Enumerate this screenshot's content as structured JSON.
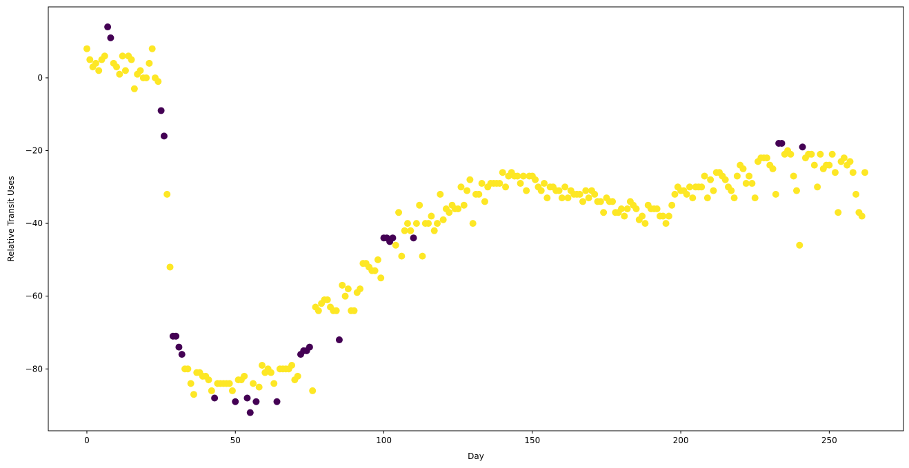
{
  "chart_data": {
    "type": "scatter",
    "title": "",
    "xlabel": "Day",
    "ylabel": "Relative Transit Uses",
    "xlim": [
      -13,
      275
    ],
    "ylim": [
      -97,
      19.5
    ],
    "xticks": [
      0,
      50,
      100,
      150,
      200,
      250
    ],
    "yticks": [
      0,
      -20,
      -40,
      -60,
      -80
    ],
    "grid": false,
    "legend": "none",
    "colors": {
      "yellow": "#fde725",
      "purple": "#440154"
    },
    "points": [
      [
        0,
        8,
        "yellow"
      ],
      [
        1,
        5,
        "yellow"
      ],
      [
        2,
        3,
        "yellow"
      ],
      [
        3,
        4,
        "yellow"
      ],
      [
        4,
        2,
        "yellow"
      ],
      [
        5,
        5,
        "yellow"
      ],
      [
        6,
        6,
        "yellow"
      ],
      [
        7,
        14,
        "purple"
      ],
      [
        8,
        11,
        "purple"
      ],
      [
        9,
        4,
        "yellow"
      ],
      [
        10,
        3,
        "yellow"
      ],
      [
        11,
        1,
        "yellow"
      ],
      [
        12,
        6,
        "yellow"
      ],
      [
        13,
        2,
        "yellow"
      ],
      [
        14,
        6,
        "yellow"
      ],
      [
        15,
        5,
        "yellow"
      ],
      [
        16,
        -3,
        "yellow"
      ],
      [
        17,
        1,
        "yellow"
      ],
      [
        18,
        2,
        "yellow"
      ],
      [
        19,
        0,
        "yellow"
      ],
      [
        20,
        0,
        "yellow"
      ],
      [
        21,
        4,
        "yellow"
      ],
      [
        22,
        8,
        "yellow"
      ],
      [
        23,
        0,
        "yellow"
      ],
      [
        24,
        -1,
        "yellow"
      ],
      [
        25,
        -9,
        "purple"
      ],
      [
        26,
        -16,
        "purple"
      ],
      [
        27,
        -32,
        "yellow"
      ],
      [
        28,
        -52,
        "yellow"
      ],
      [
        29,
        -71,
        "purple"
      ],
      [
        30,
        -71,
        "purple"
      ],
      [
        31,
        -74,
        "purple"
      ],
      [
        32,
        -76,
        "purple"
      ],
      [
        33,
        -80,
        "yellow"
      ],
      [
        34,
        -80,
        "yellow"
      ],
      [
        35,
        -84,
        "yellow"
      ],
      [
        36,
        -87,
        "yellow"
      ],
      [
        37,
        -81,
        "yellow"
      ],
      [
        38,
        -81,
        "yellow"
      ],
      [
        39,
        -82,
        "yellow"
      ],
      [
        40,
        -82,
        "yellow"
      ],
      [
        41,
        -83,
        "yellow"
      ],
      [
        42,
        -86,
        "yellow"
      ],
      [
        43,
        -88,
        "purple"
      ],
      [
        44,
        -84,
        "yellow"
      ],
      [
        45,
        -84,
        "yellow"
      ],
      [
        46,
        -84,
        "yellow"
      ],
      [
        47,
        -84,
        "yellow"
      ],
      [
        48,
        -84,
        "yellow"
      ],
      [
        49,
        -86,
        "yellow"
      ],
      [
        50,
        -89,
        "purple"
      ],
      [
        51,
        -83,
        "yellow"
      ],
      [
        52,
        -83,
        "yellow"
      ],
      [
        53,
        -82,
        "yellow"
      ],
      [
        54,
        -88,
        "purple"
      ],
      [
        55,
        -92,
        "purple"
      ],
      [
        56,
        -84,
        "yellow"
      ],
      [
        57,
        -89,
        "purple"
      ],
      [
        58,
        -85,
        "yellow"
      ],
      [
        59,
        -79,
        "yellow"
      ],
      [
        60,
        -81,
        "yellow"
      ],
      [
        61,
        -80,
        "yellow"
      ],
      [
        62,
        -81,
        "yellow"
      ],
      [
        63,
        -84,
        "yellow"
      ],
      [
        64,
        -89,
        "purple"
      ],
      [
        65,
        -80,
        "yellow"
      ],
      [
        66,
        -80,
        "yellow"
      ],
      [
        67,
        -80,
        "yellow"
      ],
      [
        68,
        -80,
        "yellow"
      ],
      [
        69,
        -79,
        "yellow"
      ],
      [
        70,
        -83,
        "yellow"
      ],
      [
        71,
        -82,
        "yellow"
      ],
      [
        72,
        -76,
        "purple"
      ],
      [
        73,
        -75,
        "purple"
      ],
      [
        74,
        -75,
        "purple"
      ],
      [
        75,
        -74,
        "purple"
      ],
      [
        76,
        -86,
        "yellow"
      ],
      [
        77,
        -63,
        "yellow"
      ],
      [
        78,
        -64,
        "yellow"
      ],
      [
        79,
        -62,
        "yellow"
      ],
      [
        80,
        -61,
        "yellow"
      ],
      [
        81,
        -61,
        "yellow"
      ],
      [
        82,
        -63,
        "yellow"
      ],
      [
        83,
        -64,
        "yellow"
      ],
      [
        84,
        -64,
        "yellow"
      ],
      [
        85,
        -72,
        "purple"
      ],
      [
        86,
        -57,
        "yellow"
      ],
      [
        87,
        -60,
        "yellow"
      ],
      [
        88,
        -58,
        "yellow"
      ],
      [
        89,
        -64,
        "yellow"
      ],
      [
        90,
        -64,
        "yellow"
      ],
      [
        91,
        -59,
        "yellow"
      ],
      [
        92,
        -58,
        "yellow"
      ],
      [
        93,
        -51,
        "yellow"
      ],
      [
        94,
        -51,
        "yellow"
      ],
      [
        95,
        -52,
        "yellow"
      ],
      [
        96,
        -53,
        "yellow"
      ],
      [
        97,
        -53,
        "yellow"
      ],
      [
        98,
        -50,
        "yellow"
      ],
      [
        99,
        -55,
        "yellow"
      ],
      [
        100,
        -44,
        "purple"
      ],
      [
        101,
        -44,
        "purple"
      ],
      [
        102,
        -45,
        "purple"
      ],
      [
        103,
        -44,
        "purple"
      ],
      [
        104,
        -46,
        "yellow"
      ],
      [
        105,
        -37,
        "yellow"
      ],
      [
        106,
        -49,
        "yellow"
      ],
      [
        107,
        -42,
        "yellow"
      ],
      [
        108,
        -40,
        "yellow"
      ],
      [
        109,
        -42,
        "yellow"
      ],
      [
        110,
        -44,
        "purple"
      ],
      [
        111,
        -40,
        "yellow"
      ],
      [
        112,
        -35,
        "yellow"
      ],
      [
        113,
        -49,
        "yellow"
      ],
      [
        114,
        -40,
        "yellow"
      ],
      [
        115,
        -40,
        "yellow"
      ],
      [
        116,
        -38,
        "yellow"
      ],
      [
        117,
        -42,
        "yellow"
      ],
      [
        118,
        -40,
        "yellow"
      ],
      [
        119,
        -32,
        "yellow"
      ],
      [
        120,
        -39,
        "yellow"
      ],
      [
        121,
        -36,
        "yellow"
      ],
      [
        122,
        -37,
        "yellow"
      ],
      [
        123,
        -35,
        "yellow"
      ],
      [
        124,
        -36,
        "yellow"
      ],
      [
        125,
        -36,
        "yellow"
      ],
      [
        126,
        -30,
        "yellow"
      ],
      [
        127,
        -35,
        "yellow"
      ],
      [
        128,
        -31,
        "yellow"
      ],
      [
        129,
        -28,
        "yellow"
      ],
      [
        130,
        -40,
        "yellow"
      ],
      [
        131,
        -32,
        "yellow"
      ],
      [
        132,
        -32,
        "yellow"
      ],
      [
        133,
        -29,
        "yellow"
      ],
      [
        134,
        -34,
        "yellow"
      ],
      [
        135,
        -30,
        "yellow"
      ],
      [
        136,
        -29,
        "yellow"
      ],
      [
        137,
        -29,
        "yellow"
      ],
      [
        138,
        -29,
        "yellow"
      ],
      [
        139,
        -29,
        "yellow"
      ],
      [
        140,
        -26,
        "yellow"
      ],
      [
        141,
        -30,
        "yellow"
      ],
      [
        142,
        -27,
        "yellow"
      ],
      [
        143,
        -26,
        "yellow"
      ],
      [
        144,
        -27,
        "yellow"
      ],
      [
        145,
        -27,
        "yellow"
      ],
      [
        146,
        -29,
        "yellow"
      ],
      [
        147,
        -27,
        "yellow"
      ],
      [
        148,
        -31,
        "yellow"
      ],
      [
        149,
        -27,
        "yellow"
      ],
      [
        150,
        -27,
        "yellow"
      ],
      [
        151,
        -28,
        "yellow"
      ],
      [
        152,
        -30,
        "yellow"
      ],
      [
        153,
        -31,
        "yellow"
      ],
      [
        154,
        -29,
        "yellow"
      ],
      [
        155,
        -33,
        "yellow"
      ],
      [
        156,
        -30,
        "yellow"
      ],
      [
        157,
        -30,
        "yellow"
      ],
      [
        158,
        -31,
        "yellow"
      ],
      [
        159,
        -31,
        "yellow"
      ],
      [
        160,
        -33,
        "yellow"
      ],
      [
        161,
        -30,
        "yellow"
      ],
      [
        162,
        -33,
        "yellow"
      ],
      [
        163,
        -31,
        "yellow"
      ],
      [
        164,
        -32,
        "yellow"
      ],
      [
        165,
        -32,
        "yellow"
      ],
      [
        166,
        -32,
        "yellow"
      ],
      [
        167,
        -34,
        "yellow"
      ],
      [
        168,
        -31,
        "yellow"
      ],
      [
        169,
        -33,
        "yellow"
      ],
      [
        170,
        -31,
        "yellow"
      ],
      [
        171,
        -32,
        "yellow"
      ],
      [
        172,
        -34,
        "yellow"
      ],
      [
        173,
        -34,
        "yellow"
      ],
      [
        174,
        -37,
        "yellow"
      ],
      [
        175,
        -33,
        "yellow"
      ],
      [
        176,
        -34,
        "yellow"
      ],
      [
        177,
        -34,
        "yellow"
      ],
      [
        178,
        -37,
        "yellow"
      ],
      [
        179,
        -37,
        "yellow"
      ],
      [
        180,
        -36,
        "yellow"
      ],
      [
        181,
        -38,
        "yellow"
      ],
      [
        182,
        -36,
        "yellow"
      ],
      [
        183,
        -34,
        "yellow"
      ],
      [
        184,
        -35,
        "yellow"
      ],
      [
        185,
        -36,
        "yellow"
      ],
      [
        186,
        -39,
        "yellow"
      ],
      [
        187,
        -38,
        "yellow"
      ],
      [
        188,
        -40,
        "yellow"
      ],
      [
        189,
        -35,
        "yellow"
      ],
      [
        190,
        -36,
        "yellow"
      ],
      [
        191,
        -36,
        "yellow"
      ],
      [
        192,
        -36,
        "yellow"
      ],
      [
        193,
        -38,
        "yellow"
      ],
      [
        194,
        -38,
        "yellow"
      ],
      [
        195,
        -40,
        "yellow"
      ],
      [
        196,
        -38,
        "yellow"
      ],
      [
        197,
        -35,
        "yellow"
      ],
      [
        198,
        -32,
        "yellow"
      ],
      [
        199,
        -30,
        "yellow"
      ],
      [
        200,
        -31,
        "yellow"
      ],
      [
        201,
        -31,
        "yellow"
      ],
      [
        202,
        -32,
        "yellow"
      ],
      [
        203,
        -30,
        "yellow"
      ],
      [
        204,
        -33,
        "yellow"
      ],
      [
        205,
        -30,
        "yellow"
      ],
      [
        206,
        -30,
        "yellow"
      ],
      [
        207,
        -30,
        "yellow"
      ],
      [
        208,
        -27,
        "yellow"
      ],
      [
        209,
        -33,
        "yellow"
      ],
      [
        210,
        -28,
        "yellow"
      ],
      [
        211,
        -31,
        "yellow"
      ],
      [
        212,
        -26,
        "yellow"
      ],
      [
        213,
        -26,
        "yellow"
      ],
      [
        214,
        -27,
        "yellow"
      ],
      [
        215,
        -28,
        "yellow"
      ],
      [
        216,
        -30,
        "yellow"
      ],
      [
        217,
        -31,
        "yellow"
      ],
      [
        218,
        -33,
        "yellow"
      ],
      [
        219,
        -27,
        "yellow"
      ],
      [
        220,
        -24,
        "yellow"
      ],
      [
        221,
        -25,
        "yellow"
      ],
      [
        222,
        -29,
        "yellow"
      ],
      [
        223,
        -27,
        "yellow"
      ],
      [
        224,
        -29,
        "yellow"
      ],
      [
        225,
        -33,
        "yellow"
      ],
      [
        226,
        -23,
        "yellow"
      ],
      [
        227,
        -22,
        "yellow"
      ],
      [
        228,
        -22,
        "yellow"
      ],
      [
        229,
        -22,
        "yellow"
      ],
      [
        230,
        -24,
        "yellow"
      ],
      [
        231,
        -25,
        "yellow"
      ],
      [
        232,
        -32,
        "yellow"
      ],
      [
        233,
        -18,
        "purple"
      ],
      [
        234,
        -18,
        "purple"
      ],
      [
        235,
        -21,
        "yellow"
      ],
      [
        236,
        -20,
        "yellow"
      ],
      [
        237,
        -21,
        "yellow"
      ],
      [
        238,
        -27,
        "yellow"
      ],
      [
        239,
        -31,
        "yellow"
      ],
      [
        240,
        -46,
        "yellow"
      ],
      [
        241,
        -19,
        "purple"
      ],
      [
        242,
        -22,
        "yellow"
      ],
      [
        243,
        -21,
        "yellow"
      ],
      [
        244,
        -21,
        "yellow"
      ],
      [
        245,
        -24,
        "yellow"
      ],
      [
        246,
        -30,
        "yellow"
      ],
      [
        247,
        -21,
        "yellow"
      ],
      [
        248,
        -25,
        "yellow"
      ],
      [
        249,
        -24,
        "yellow"
      ],
      [
        250,
        -24,
        "yellow"
      ],
      [
        251,
        -21,
        "yellow"
      ],
      [
        252,
        -26,
        "yellow"
      ],
      [
        253,
        -37,
        "yellow"
      ],
      [
        254,
        -23,
        "yellow"
      ],
      [
        255,
        -22,
        "yellow"
      ],
      [
        256,
        -24,
        "yellow"
      ],
      [
        257,
        -23,
        "yellow"
      ],
      [
        258,
        -26,
        "yellow"
      ],
      [
        259,
        -32,
        "yellow"
      ],
      [
        260,
        -37,
        "yellow"
      ],
      [
        261,
        -38,
        "yellow"
      ],
      [
        262,
        -26,
        "yellow"
      ]
    ]
  }
}
